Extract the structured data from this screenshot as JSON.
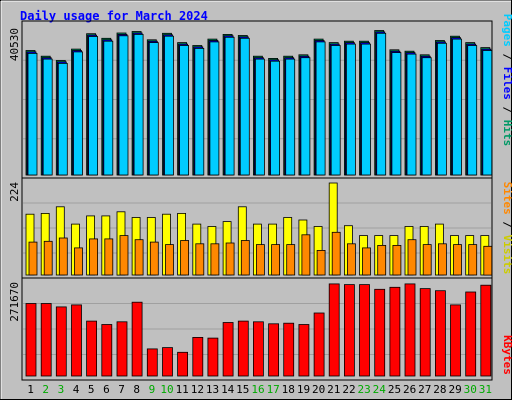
{
  "chart_data": {
    "type": "bar",
    "title": "Daily usage for March 2024",
    "days": [
      "1",
      "2",
      "3",
      "4",
      "5",
      "6",
      "7",
      "8",
      "9",
      "10",
      "11",
      "12",
      "13",
      "14",
      "15",
      "16",
      "17",
      "18",
      "19",
      "20",
      "21",
      "22",
      "23",
      "24",
      "25",
      "26",
      "27",
      "28",
      "29",
      "30",
      "31"
    ],
    "weekend_days": [
      "2",
      "3",
      "9",
      "10",
      "16",
      "17",
      "23",
      "24",
      "30",
      "31"
    ],
    "panels": {
      "top": {
        "max_label": "40530",
        "ymax": 40530,
        "series": [
          {
            "name": "Hits",
            "color": "#009966",
            "values": [
              34800,
              33200,
              32000,
              35200,
              39500,
              38200,
              39700,
              40100,
              37800,
              39600,
              37000,
              36200,
              38000,
              39300,
              39000,
              33200,
              32600,
              33200,
              33600,
              38000,
              37000,
              37400,
              37400,
              40400,
              35000,
              34600,
              33600,
              37600,
              38800,
              37000,
              35600
            ]
          },
          {
            "name": "Files",
            "color": "#0000ff",
            "values": [
              34400,
              32800,
              31600,
              34800,
              39100,
              37800,
              39300,
              39700,
              37400,
              39200,
              36600,
              35800,
              37600,
              38900,
              38600,
              32800,
              32200,
              32800,
              33200,
              37600,
              36600,
              37000,
              37000,
              40000,
              34600,
              34200,
              33200,
              37200,
              38400,
              36600,
              35200
            ]
          },
          {
            "name": "Pages",
            "color": "#00ccff",
            "values": [
              34000,
              32400,
              31200,
              34400,
              38700,
              37400,
              38900,
              39300,
              37000,
              38800,
              36200,
              35400,
              37200,
              38500,
              38200,
              32400,
              31800,
              32400,
              32800,
              37200,
              36200,
              36600,
              36600,
              39600,
              34200,
              33800,
              32800,
              36800,
              38000,
              36200,
              34800
            ]
          }
        ]
      },
      "middle": {
        "max_label": "224",
        "ymax": 224,
        "series": [
          {
            "name": "Visits",
            "color": "#ffff00",
            "values": [
              148,
              150,
              166,
              124,
              144,
              144,
              154,
              140,
              140,
              148,
              150,
              124,
              118,
              130,
              166,
              124,
              124,
              140,
              134,
              118,
              224,
              120,
              96,
              96,
              96,
              118,
              118,
              124,
              96,
              96,
              96
            ]
          },
          {
            "name": "Sites",
            "color": "#ff8800",
            "values": [
              80,
              82,
              90,
              66,
              88,
              88,
              96,
              86,
              80,
              74,
              84,
              76,
              76,
              78,
              84,
              74,
              74,
              74,
              98,
              60,
              104,
              76,
              66,
              72,
              72,
              86,
              74,
              76,
              74,
              74,
              70
            ]
          }
        ]
      },
      "bottom": {
        "max_label": "271670",
        "ymax": 271670,
        "series": [
          {
            "name": "KBytes",
            "color": "#ff0000",
            "values": [
              214000,
              214000,
              204000,
              210000,
              162000,
              152000,
              160000,
              218000,
              80000,
              84000,
              70000,
              114000,
              112000,
              158000,
              162000,
              160000,
              154000,
              156000,
              152000,
              186000,
              272000,
              270000,
              270000,
              256000,
              262000,
              272000,
              258000,
              252000,
              210000,
              248000,
              268000
            ]
          }
        ]
      }
    },
    "legend": {
      "top": [
        "Pages",
        "Files",
        "Hits"
      ],
      "middle": [
        "Sites",
        "Visits"
      ],
      "bottom": [
        "KBytes"
      ]
    },
    "colors": {
      "background": "#c0c0c0",
      "title": "#0000ff",
      "weekday_label": "#000000",
      "weekend_label": "#00aa00",
      "separator": "#000000"
    }
  }
}
